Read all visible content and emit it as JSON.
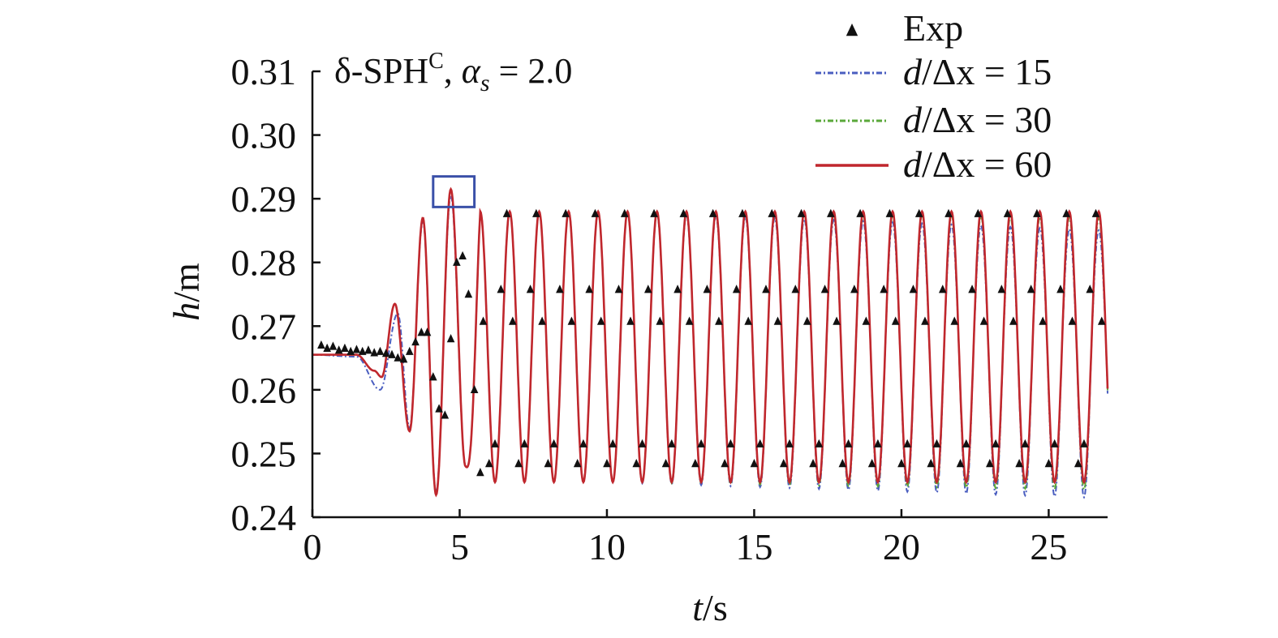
{
  "chart_data": {
    "type": "line",
    "xlabel": {
      "var": "t",
      "unit": "/s"
    },
    "ylabel": {
      "var": "h",
      "unit": "/m"
    },
    "xlim": [
      0,
      27
    ],
    "ylim": [
      0.24,
      0.31
    ],
    "xticks": [
      0,
      5,
      10,
      15,
      20,
      25
    ],
    "xtick_labels": [
      "0",
      "5",
      "10",
      "15",
      "20",
      "25"
    ],
    "yticks": [
      0.24,
      0.25,
      0.26,
      0.27,
      0.28,
      0.29,
      0.3,
      0.31
    ],
    "ytick_labels": [
      "0.24",
      "0.25",
      "0.26",
      "0.27",
      "0.28",
      "0.29",
      "0.30",
      "0.31"
    ],
    "grid": false,
    "legend_position": "top-right",
    "annotation": {
      "prefix": "δ-SPH",
      "superscript": "C",
      "separator": ", ",
      "alpha_symbol": "α",
      "alpha_subscript": "s",
      "alpha_value": " = 2.0"
    },
    "highlight_box": {
      "x": [
        4.1,
        5.5
      ],
      "y": [
        0.2887,
        0.2935
      ],
      "color": "#3a50a8"
    },
    "signal": {
      "baseline": 0.2655,
      "peak": 0.288,
      "trough": 0.2455,
      "period": 1.0,
      "first_peak_time": 5.7,
      "early_points": [
        [
          0,
          0.2655
        ],
        [
          1.5,
          0.2655
        ],
        [
          2.1,
          0.263
        ],
        [
          2.35,
          0.262
        ],
        [
          2.8,
          0.2735
        ],
        [
          3.3,
          0.2535
        ],
        [
          3.75,
          0.287
        ],
        [
          4.2,
          0.2435
        ],
        [
          4.7,
          0.2915
        ],
        [
          5.2,
          0.248
        ]
      ]
    },
    "series": [
      {
        "name": "Exp",
        "style": "markers",
        "marker": "triangle",
        "color": "#111111",
        "early_points": [
          [
            0.3,
            0.267
          ],
          [
            0.5,
            0.2665
          ],
          [
            0.7,
            0.2668
          ],
          [
            0.9,
            0.2662
          ],
          [
            1.1,
            0.2665
          ],
          [
            1.3,
            0.266
          ],
          [
            1.5,
            0.2663
          ],
          [
            1.7,
            0.266
          ],
          [
            1.9,
            0.2662
          ],
          [
            2.1,
            0.2658
          ],
          [
            2.3,
            0.266
          ],
          [
            2.5,
            0.2657
          ],
          [
            2.7,
            0.2655
          ],
          [
            2.9,
            0.265
          ],
          [
            3.1,
            0.2648
          ],
          [
            3.3,
            0.266
          ],
          [
            3.5,
            0.2675
          ],
          [
            3.7,
            0.269
          ],
          [
            3.9,
            0.269
          ],
          [
            4.1,
            0.262
          ],
          [
            4.3,
            0.257
          ],
          [
            4.5,
            0.256
          ],
          [
            4.7,
            0.268
          ],
          [
            4.9,
            0.28
          ],
          [
            5.1,
            0.281
          ],
          [
            5.3,
            0.275
          ],
          [
            5.5,
            0.26
          ],
          [
            5.7,
            0.247
          ]
        ],
        "start_time": 5.8,
        "end_time": 26.9,
        "step": 0.2,
        "amplitude": 0.021,
        "center": 0.2668,
        "phase_shift": 0.12
      },
      {
        "name": "d/Δx = 15",
        "label_parts": {
          "var": "d",
          "rest": "/Δx = 15"
        },
        "style": "dash-dot",
        "color": "#4a5ec0",
        "peak_decay": 0.0006,
        "trough_extra": 0.0025,
        "early_variant": true
      },
      {
        "name": "d/Δx = 30",
        "label_parts": {
          "var": "d",
          "rest": "/Δx = 30"
        },
        "style": "dash-dot",
        "color": "#5aa83a",
        "peak_decay": 0.0002,
        "trough_extra": 0.0012,
        "early_variant": false
      },
      {
        "name": "d/Δx = 60",
        "label_parts": {
          "var": "d",
          "rest": "/Δx = 60"
        },
        "style": "solid",
        "color": "#c0272d",
        "peak_decay": 0.0,
        "trough_extra": 0.0,
        "early_variant": false
      }
    ]
  }
}
